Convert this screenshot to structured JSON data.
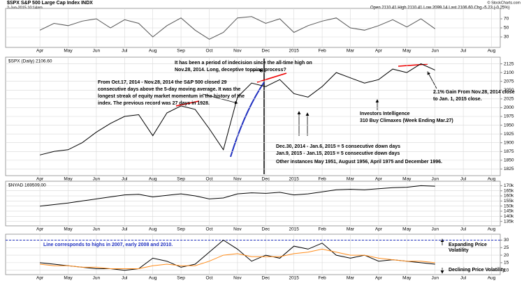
{
  "header": {
    "title": "$SPX S&P 500 Large Cap Index INDX",
    "date": "2-Jun-2015 10:14am",
    "quote": "Open 2110.41  High 2110.41  Low 2099.14  Last 2106.60  Chg -5.23 (-0.25%)",
    "credit": "© StockCharts.com"
  },
  "chart_data": [
    {
      "type": "line",
      "categories": [
        "Apr",
        null,
        "May",
        null,
        "Jun",
        null,
        "Jul",
        null,
        "Aug",
        null,
        "Sep",
        null,
        "Oct",
        null,
        "Nov",
        null,
        "Dec",
        null,
        "2015",
        null,
        "Feb",
        null,
        "Mar",
        null,
        "Apr",
        null,
        "May",
        null,
        "Jun",
        null,
        "Jul",
        null,
        "Aug",
        null
      ],
      "series": [
        {
          "color": "#555555",
          "values": [
            45,
            60,
            55,
            65,
            70,
            50,
            68,
            60,
            30,
            55,
            72,
            45,
            25,
            40,
            72,
            75,
            60,
            70,
            40,
            55,
            65,
            72,
            50,
            45,
            55,
            68,
            52,
            70,
            48,
            null,
            null,
            null,
            null,
            null
          ]
        }
      ],
      "ylim": [
        10,
        90
      ],
      "yticks": [
        30,
        50,
        70
      ],
      "grid": true
    },
    {
      "type": "line",
      "legend_label": "$SPX (Daily) 2106.60",
      "categories": [
        "Apr",
        null,
        "May",
        null,
        "Jun",
        null,
        "Jul",
        null,
        "Aug",
        null,
        "Sep",
        null,
        "Oct",
        null,
        "Nov",
        null,
        "Dec",
        null,
        "2015",
        null,
        "Feb",
        null,
        "Mar",
        null,
        "Apr",
        null,
        "May",
        null,
        "Jun",
        null,
        "Jul",
        null,
        "Aug",
        null
      ],
      "series": [
        {
          "color": "#000000",
          "values": [
            1865,
            1875,
            1880,
            1900,
            1930,
            1955,
            1975,
            1980,
            1920,
            1985,
            2005,
            1995,
            1940,
            1880,
            2030,
            2070,
            2060,
            2080,
            2040,
            2030,
            2060,
            2100,
            2085,
            2070,
            2080,
            2110,
            2100,
            2125,
            2107,
            null,
            null,
            null,
            null,
            null
          ]
        }
      ],
      "ylim": [
        1810,
        2140
      ],
      "yticks": [
        1825,
        1850,
        1875,
        1900,
        1925,
        1950,
        1975,
        2000,
        2025,
        2050,
        2075,
        2100,
        2125
      ],
      "grid": true,
      "annotations": [
        "It has been a period of indecision since the all-time high on",
        "Nov.28, 2014. Long, deceptive topping process?",
        "From Oct.17, 2014 - Nov.28, 2014 the S&P 500 closed 29",
        "consecutive days above the 5-day moving average. It was the",
        "longest streak of equity market momentum in the history of the",
        "index. The previous record was 27 days in 1928.",
        "2.1% Gain From Nov.28, 2014 close",
        "to Jan. 1, 2015 close.",
        "Investors Intelligence",
        "310 Buy Climaxes (Week Ending Mar.27)",
        "Dec.30, 2014 - Jan.6, 2015 = 5 consecutive down days",
        "Jan.9, 2015 - Jan.15, 2015 = 5 consecutive down days",
        "Other instances May 1951, August 1956, April 1975 and December 1996."
      ]
    },
    {
      "type": "line",
      "legend_label": "$NYAD 169509.00",
      "categories": [
        "Apr",
        null,
        "May",
        null,
        "Jun",
        null,
        "Jul",
        null,
        "Aug",
        null,
        "Sep",
        null,
        "Oct",
        null,
        "Nov",
        null,
        "Dec",
        null,
        "2015",
        null,
        "Feb",
        null,
        "Mar",
        null,
        "Apr",
        null,
        "May",
        null,
        "Jun",
        null,
        "Jul",
        null,
        "Aug",
        null
      ],
      "series": [
        {
          "color": "#000000",
          "values": [
            150000,
            151500,
            153000,
            155000,
            157000,
            159000,
            161000,
            161500,
            159000,
            160500,
            162000,
            160000,
            157000,
            158000,
            162000,
            163000,
            162500,
            163500,
            161000,
            162000,
            164000,
            166000,
            166500,
            166000,
            167000,
            168000,
            168500,
            170000,
            169509,
            null,
            null,
            null,
            null,
            null
          ]
        }
      ],
      "ylim": [
        132000,
        173000
      ],
      "yticks": [
        {
          "value": 135000,
          "label": "135k"
        },
        {
          "value": 140000,
          "label": "140k"
        },
        {
          "value": 145000,
          "label": "145k"
        },
        {
          "value": 150000,
          "label": "150k"
        },
        {
          "value": 155000,
          "label": "155k"
        },
        {
          "value": 160000,
          "label": "160k"
        },
        {
          "value": 165000,
          "label": "165k"
        },
        {
          "value": 170000,
          "label": "170k"
        }
      ],
      "grid": true
    },
    {
      "type": "line",
      "categories": [
        "Apr",
        null,
        "May",
        null,
        "Jun",
        null,
        "Jul",
        null,
        "Aug",
        null,
        "Sep",
        null,
        "Oct",
        null,
        "Nov",
        null,
        "Dec",
        null,
        "2015",
        null,
        "Feb",
        null,
        "Mar",
        null,
        "Apr",
        null,
        "May",
        null,
        "Jun",
        null,
        "Jul",
        null,
        "Aug",
        null
      ],
      "series": [
        {
          "color": "#000000",
          "values": [
            15,
            14,
            13,
            12,
            11,
            11,
            10,
            11,
            18,
            16,
            12,
            14,
            22,
            30,
            24,
            16,
            20,
            18,
            26,
            24,
            28,
            20,
            18,
            20,
            16,
            17,
            16,
            15,
            14,
            null,
            null,
            null,
            null,
            null
          ]
        },
        {
          "color": "#ff8c1a",
          "values": [
            14,
            13,
            13,
            12,
            12,
            11,
            11,
            11,
            13,
            14,
            13,
            13,
            16,
            20,
            21,
            19,
            19,
            19,
            21,
            22,
            24,
            22,
            20,
            20,
            18,
            17,
            16,
            16,
            15,
            null,
            null,
            null,
            null,
            null
          ]
        }
      ],
      "hline": 30,
      "ylim": [
        8,
        33
      ],
      "yticks": [
        10,
        15,
        20,
        25,
        30
      ],
      "grid": true,
      "annotations": [
        "Line corresponds to highs in 2007, early 2008 and 2010.",
        "Expanding Price",
        "Volatility",
        "Declining Price Volatility"
      ]
    }
  ]
}
